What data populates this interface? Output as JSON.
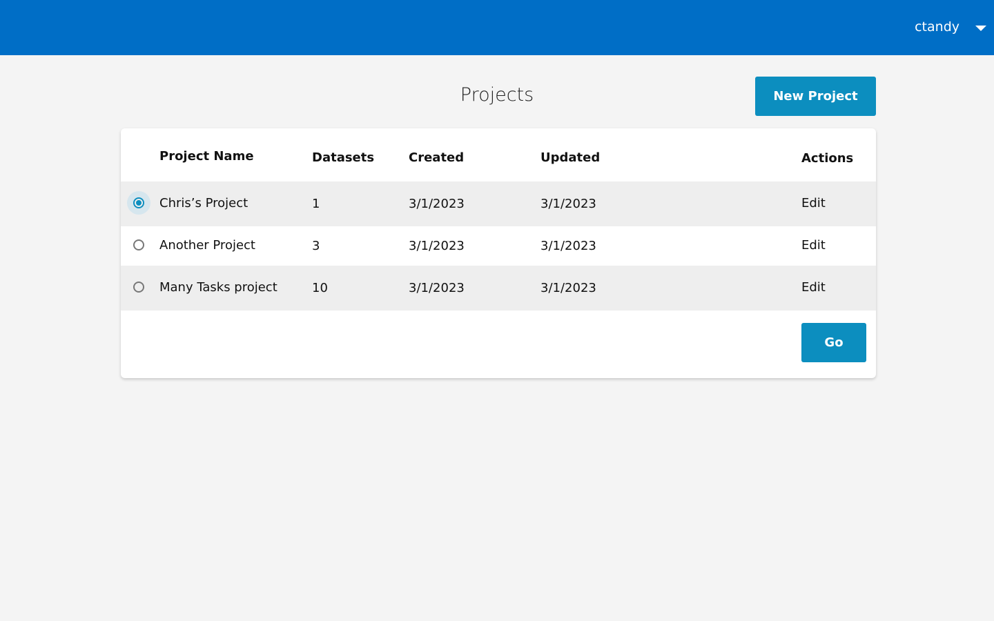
{
  "header": {
    "user": "ctandy"
  },
  "page": {
    "title": "Projects",
    "new_button": "New Project",
    "go_button": "Go"
  },
  "table": {
    "columns": [
      "Project Name",
      "Datasets",
      "Created",
      "Updated",
      "Actions"
    ],
    "selected": 0,
    "rows": [
      [
        "Chris’s Project",
        "1",
        "3/1/2023",
        "3/1/2023",
        "Edit"
      ],
      [
        "Another Project",
        "3",
        "3/1/2023",
        "3/1/2023",
        "Edit"
      ],
      [
        "Many Tasks project",
        "10",
        "3/1/2023",
        "3/1/2023",
        "Edit"
      ]
    ]
  }
}
